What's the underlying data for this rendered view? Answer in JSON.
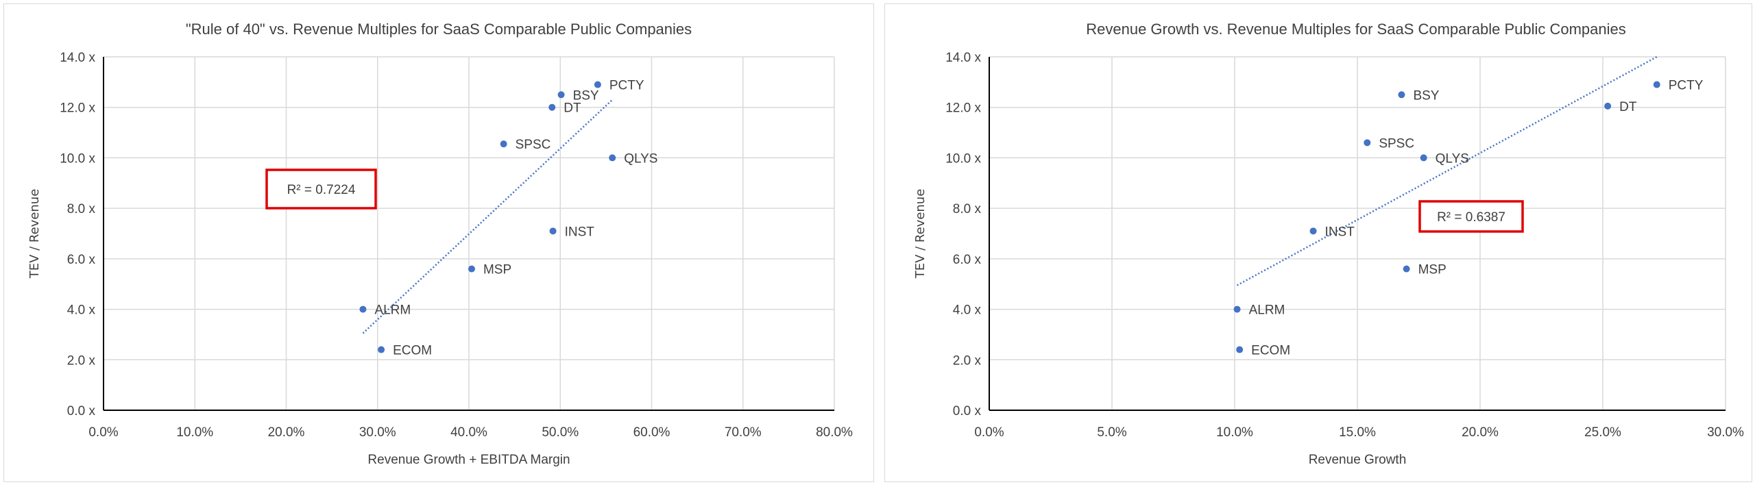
{
  "chart_data": [
    {
      "type": "scatter",
      "title": "\"Rule of 40\" vs. Revenue Multiples for SaaS Comparable Public Companies",
      "xlabel": "Revenue Growth + EBITDA Margin",
      "ylabel": "TEV / Revenue",
      "xlim": [
        0,
        80
      ],
      "ylim": [
        0,
        14
      ],
      "xticks": [
        "0.0%",
        "10.0%",
        "20.0%",
        "30.0%",
        "40.0%",
        "50.0%",
        "60.0%",
        "70.0%",
        "80.0%"
      ],
      "yticks": [
        "0.0 x",
        "2.0 x",
        "4.0 x",
        "6.0 x",
        "8.0 x",
        "10.0 x",
        "12.0 x",
        "14.0 x"
      ],
      "grid": true,
      "marker_color": "#4472c4",
      "trendline": {
        "type": "linear",
        "style": "dotted",
        "r_squared_label": "R² = 0.7224",
        "x": [
          28.4,
          55.7
        ],
        "y": [
          3.05,
          12.3
        ]
      },
      "annotation_box_color": "#e00000",
      "points": [
        {
          "label": "PCTY",
          "x": 54.1,
          "y": 12.9
        },
        {
          "label": "BSY",
          "x": 50.1,
          "y": 12.5
        },
        {
          "label": "DT",
          "x": 49.1,
          "y": 12.0
        },
        {
          "label": "SPSC",
          "x": 43.8,
          "y": 10.55
        },
        {
          "label": "QLYS",
          "x": 55.7,
          "y": 10.0
        },
        {
          "label": "INST",
          "x": 49.2,
          "y": 7.1
        },
        {
          "label": "MSP",
          "x": 40.3,
          "y": 5.6
        },
        {
          "label": "ALRM",
          "x": 28.4,
          "y": 4.0
        },
        {
          "label": "ECOM",
          "x": 30.4,
          "y": 2.4
        }
      ]
    },
    {
      "type": "scatter",
      "title": "Revenue Growth vs. Revenue Multiples for SaaS Comparable Public Companies",
      "xlabel": "Revenue Growth",
      "ylabel": "TEV / Revenue",
      "xlim": [
        0,
        30
      ],
      "ylim": [
        0,
        14
      ],
      "xticks": [
        "0.0%",
        "5.0%",
        "10.0%",
        "15.0%",
        "20.0%",
        "25.0%",
        "30.0%"
      ],
      "yticks": [
        "0.0 x",
        "2.0 x",
        "4.0 x",
        "6.0 x",
        "8.0 x",
        "10.0 x",
        "12.0 x",
        "14.0 x"
      ],
      "grid": true,
      "marker_color": "#4472c4",
      "trendline": {
        "type": "linear",
        "style": "dotted",
        "r_squared_label": "R² = 0.6387",
        "x": [
          10.1,
          27.2
        ],
        "y": [
          4.95,
          14.0
        ]
      },
      "annotation_box_color": "#e00000",
      "points": [
        {
          "label": "PCTY",
          "x": 27.2,
          "y": 12.9
        },
        {
          "label": "DT",
          "x": 25.2,
          "y": 12.05
        },
        {
          "label": "BSY",
          "x": 16.8,
          "y": 12.5
        },
        {
          "label": "SPSC",
          "x": 15.4,
          "y": 10.6
        },
        {
          "label": "QLYS",
          "x": 17.7,
          "y": 10.0
        },
        {
          "label": "INST",
          "x": 13.2,
          "y": 7.1
        },
        {
          "label": "MSP",
          "x": 17.0,
          "y": 5.6
        },
        {
          "label": "ALRM",
          "x": 10.1,
          "y": 4.0
        },
        {
          "label": "ECOM",
          "x": 10.2,
          "y": 2.4
        }
      ]
    }
  ]
}
